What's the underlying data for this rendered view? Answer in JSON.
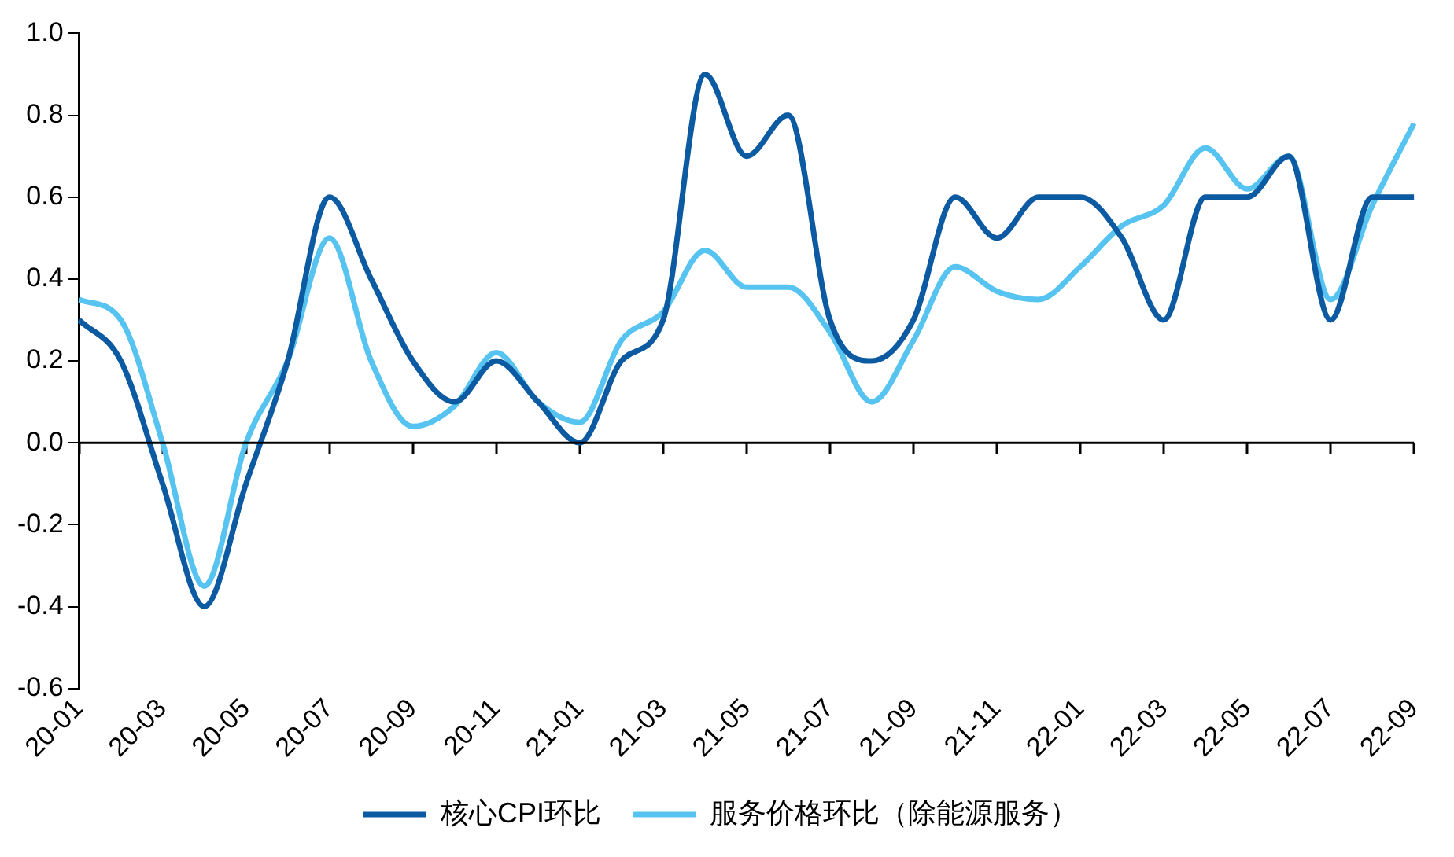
{
  "chart_data": {
    "type": "line",
    "categories": [
      "20-01",
      null,
      "20-03",
      null,
      "20-05",
      null,
      "20-07",
      null,
      "20-09",
      null,
      "20-11",
      null,
      "21-01",
      null,
      "21-03",
      null,
      "21-05",
      null,
      "21-07",
      null,
      "21-09",
      null,
      "21-11",
      null,
      "22-01",
      null,
      "22-03",
      null,
      "22-05",
      null,
      "22-07",
      null,
      "22-09"
    ],
    "series": [
      {
        "name": "核心CPI环比",
        "color": "#0b5aa2",
        "values": [
          0.3,
          0.2,
          -0.1,
          -0.4,
          -0.1,
          0.2,
          0.6,
          0.4,
          0.2,
          0.1,
          0.2,
          0.1,
          0.0,
          0.2,
          0.3,
          0.9,
          0.7,
          0.8,
          0.3,
          0.2,
          0.3,
          0.6,
          0.5,
          0.6,
          0.6,
          0.5,
          0.3,
          0.6,
          0.6,
          0.7,
          0.3,
          0.6,
          0.6
        ]
      },
      {
        "name": "服务价格环比（除能源服务）",
        "color": "#56c3f0",
        "values": [
          0.35,
          0.3,
          0.0,
          -0.35,
          0.0,
          0.2,
          0.5,
          0.2,
          0.04,
          0.09,
          0.22,
          0.1,
          0.05,
          0.25,
          0.32,
          0.47,
          0.38,
          0.38,
          0.27,
          0.1,
          0.25,
          0.43,
          0.37,
          0.35,
          0.43,
          0.53,
          0.58,
          0.72,
          0.62,
          0.7,
          0.35,
          0.58,
          0.78
        ]
      }
    ],
    "ylim": [
      -0.6,
      1.0
    ],
    "yticks": [
      {
        "value": -0.6,
        "label": "-0.6"
      },
      {
        "value": -0.4,
        "label": "-0.4"
      },
      {
        "value": -0.2,
        "label": "-0.2"
      },
      {
        "value": 0,
        "label": "0.0"
      },
      {
        "value": 0.2,
        "label": "0.2"
      },
      {
        "value": 0.4,
        "label": "0.4"
      },
      {
        "value": 0.6,
        "label": "0.6"
      },
      {
        "value": 0.8,
        "label": "0.8"
      },
      {
        "value": 1.0,
        "label": "1.0"
      }
    ],
    "ref_lines": [
      {
        "axis": "y",
        "value": 0,
        "color": "#000000",
        "line_style": "solid"
      }
    ],
    "grid": false,
    "legend": "bottom",
    "marker": "none",
    "line_style": "solid"
  }
}
